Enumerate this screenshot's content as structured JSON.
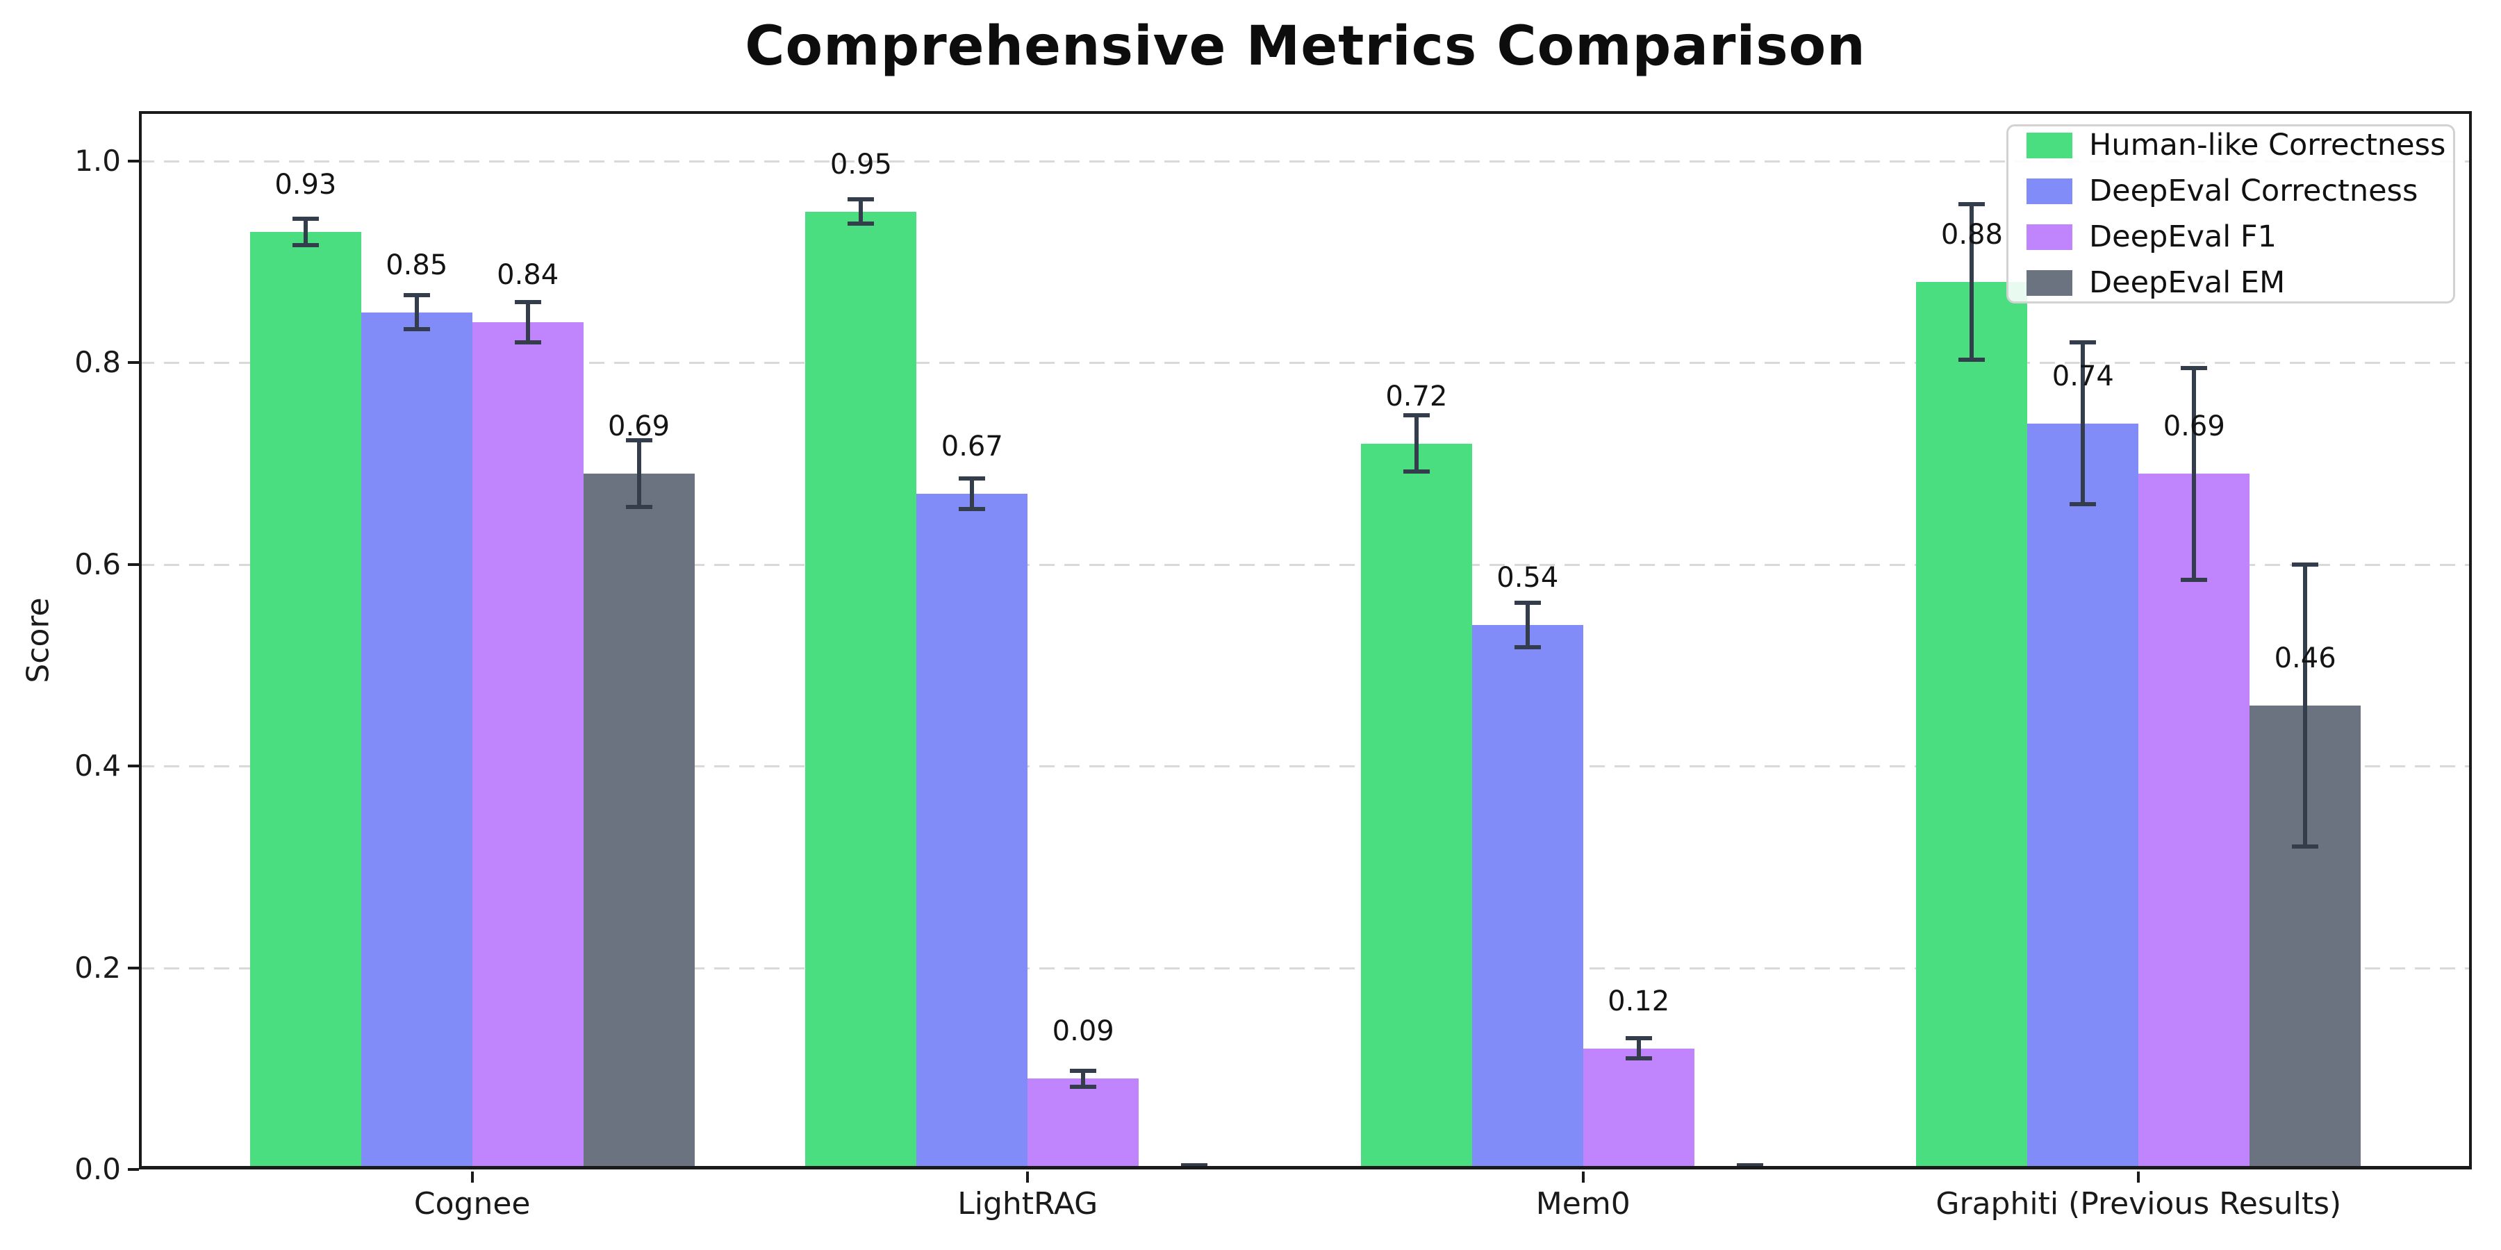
{
  "figure": {
    "title": "Comprehensive Metrics Comparison"
  },
  "chart_data": {
    "type": "bar",
    "title": "Comprehensive Metrics Comparison",
    "xlabel": "",
    "ylabel": "Score",
    "categories": [
      "Cognee",
      "LightRAG",
      "Mem0",
      "Graphiti (Previous Results)"
    ],
    "series": [
      {
        "name": "Human-like Correctness",
        "color": "#4ade80",
        "values": [
          0.93,
          0.95,
          0.72,
          0.88
        ],
        "errors": [
          0.013,
          0.012,
          0.028,
          0.077
        ],
        "value_labels": [
          "0.93",
          "0.95",
          "0.72",
          "0.88"
        ]
      },
      {
        "name": "DeepEval Correctness",
        "color": "#818cf8",
        "values": [
          0.85,
          0.67,
          0.54,
          0.74
        ],
        "errors": [
          0.017,
          0.015,
          0.022,
          0.08
        ],
        "value_labels": [
          "0.85",
          "0.67",
          "0.54",
          "0.74"
        ]
      },
      {
        "name": "DeepEval F1",
        "color": "#c084fc",
        "values": [
          0.84,
          0.09,
          0.12,
          0.69
        ],
        "errors": [
          0.02,
          0.008,
          0.01,
          0.105
        ],
        "value_labels": [
          "0.84",
          "0.09",
          "0.12",
          "0.69"
        ]
      },
      {
        "name": "DeepEval EM",
        "color": "#6b7280",
        "values": [
          0.69,
          0.0,
          0.0,
          0.46
        ],
        "errors": [
          0.033,
          0.004,
          0.004,
          0.14
        ],
        "value_labels": [
          "0.69",
          "",
          "",
          "0.46"
        ]
      }
    ],
    "y_ticks": [
      "0.0",
      "0.2",
      "0.4",
      "0.6",
      "0.8",
      "1.0"
    ],
    "ylim": [
      0.0,
      1.05
    ],
    "grid": "horizontal-dashed",
    "gridline_color": "#d9d9d9",
    "errorbar_color": "#343d4c",
    "legend_position": "upper right",
    "background_color": "#ffffff"
  }
}
